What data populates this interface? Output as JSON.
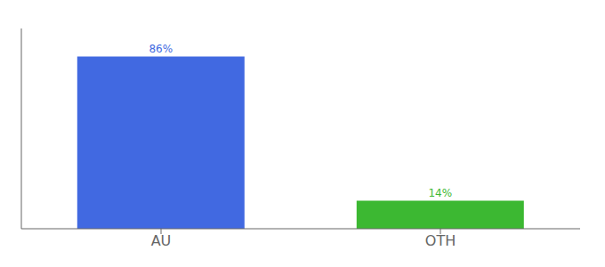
{
  "chart_data": {
    "type": "bar",
    "categories": [
      "AU",
      "OTH"
    ],
    "values": [
      86,
      14
    ],
    "value_labels": [
      "86%",
      "14%"
    ],
    "colors": [
      "#4169e1",
      "#3cb832"
    ],
    "ylim": [
      0,
      100
    ],
    "data_labels": true,
    "tick_labels": "x",
    "grid": false
  }
}
